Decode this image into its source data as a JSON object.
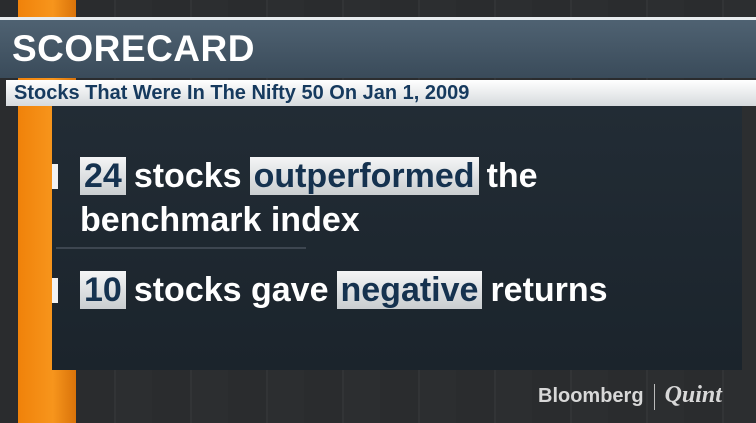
{
  "header": {
    "title": "SCORECARD",
    "subtitle": "Stocks That Were In The Nifty 50 On Jan 1, 2009"
  },
  "bullets": [
    {
      "segments": [
        {
          "text": "24",
          "highlight": true
        },
        {
          "text": "stocks",
          "highlight": false
        },
        {
          "text": "outperformed",
          "highlight": true
        },
        {
          "text": "the benchmark index",
          "highlight": false
        }
      ]
    },
    {
      "segments": [
        {
          "text": "10",
          "highlight": true
        },
        {
          "text": "stocks gave",
          "highlight": false
        },
        {
          "text": "negative",
          "highlight": true
        },
        {
          "text": "returns",
          "highlight": false
        }
      ]
    }
  ],
  "logo": {
    "brand": "Bloomberg",
    "partner": "Quint"
  }
}
